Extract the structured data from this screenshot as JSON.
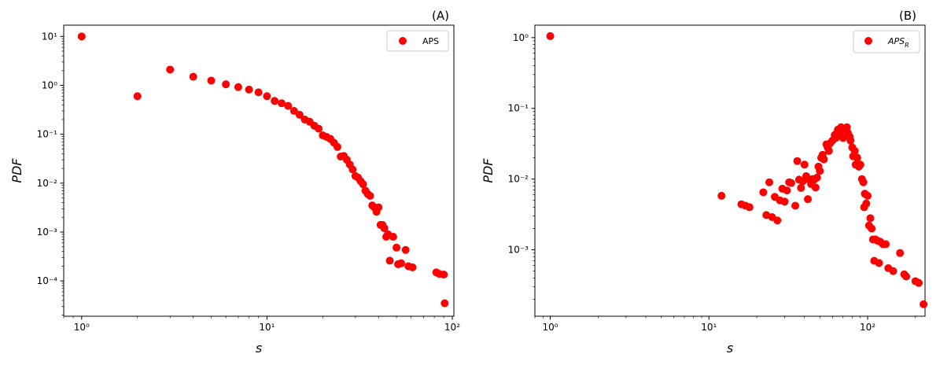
{
  "chart_data": [
    {
      "type": "scatter",
      "panel_label": "(A)",
      "xlabel": "s",
      "ylabel": "PDF",
      "xscale": "log",
      "yscale": "log",
      "xlim": [
        0.8,
        102
      ],
      "ylim": [
        1.9e-05,
        17
      ],
      "x_ticks": [
        1,
        10,
        100
      ],
      "y_ticks": [
        0.0001,
        0.001,
        0.01,
        0.1,
        1,
        10
      ],
      "grid": false,
      "legend_placement": "top-right",
      "color": "#ff0000",
      "series": [
        {
          "name": "APS",
          "points": [
            [
              1,
              10
            ],
            [
              2,
              0.6
            ],
            [
              3,
              2.1
            ],
            [
              4,
              1.5
            ],
            [
              5,
              1.25
            ],
            [
              6,
              1.05
            ],
            [
              7,
              0.92
            ],
            [
              8,
              0.82
            ],
            [
              9,
              0.72
            ],
            [
              10,
              0.6
            ],
            [
              11,
              0.48
            ],
            [
              12,
              0.43
            ],
            [
              13,
              0.38
            ],
            [
              14,
              0.3
            ],
            [
              15,
              0.25
            ],
            [
              16,
              0.2
            ],
            [
              17,
              0.18
            ],
            [
              18,
              0.15
            ],
            [
              19,
              0.13
            ],
            [
              20,
              0.095
            ],
            [
              21,
              0.088
            ],
            [
              22,
              0.08
            ],
            [
              23,
              0.067
            ],
            [
              24,
              0.055
            ],
            [
              25,
              0.035
            ],
            [
              26,
              0.036
            ],
            [
              27,
              0.03
            ],
            [
              28,
              0.024
            ],
            [
              29,
              0.019
            ],
            [
              30,
              0.014
            ],
            [
              31,
              0.013
            ],
            [
              32,
              0.011
            ],
            [
              33,
              0.0095
            ],
            [
              34,
              0.007
            ],
            [
              35,
              0.006
            ],
            [
              36,
              0.0055
            ],
            [
              37,
              0.0035
            ],
            [
              38,
              0.0032
            ],
            [
              39,
              0.0026
            ],
            [
              40,
              0.0032
            ],
            [
              41,
              0.0014
            ],
            [
              42,
              0.0014
            ],
            [
              43,
              0.0012
            ],
            [
              44,
              0.0008
            ],
            [
              45,
              0.0009
            ],
            [
              46,
              0.00026
            ],
            [
              48,
              0.0008
            ],
            [
              50,
              0.00048
            ],
            [
              51,
              0.00022
            ],
            [
              53,
              0.00023
            ],
            [
              56,
              0.00043
            ],
            [
              58,
              0.0002
            ],
            [
              61,
              0.00019
            ],
            [
              82,
              0.00015
            ],
            [
              85,
              0.00014
            ],
            [
              90,
              0.000135
            ],
            [
              91,
              3.5e-05
            ]
          ]
        }
      ]
    },
    {
      "type": "scatter",
      "panel_label": "(B)",
      "xlabel": "s",
      "ylabel": "PDF",
      "xscale": "log",
      "yscale": "log",
      "xlim": [
        0.8,
        230
      ],
      "ylim": [
        0.000115,
        1.5
      ],
      "x_ticks": [
        1,
        10,
        100
      ],
      "y_ticks": [
        0.001,
        0.01,
        0.1,
        1
      ],
      "grid": false,
      "legend_placement": "top-right",
      "color": "#ff0000",
      "series": [
        {
          "name": "APS",
          "name_subscript": "R",
          "points": [
            [
              1,
              1.05
            ],
            [
              12,
              0.0058
            ],
            [
              16,
              0.0044
            ],
            [
              17,
              0.0042
            ],
            [
              18,
              0.004
            ],
            [
              22,
              0.0065
            ],
            [
              23,
              0.0031
            ],
            [
              24,
              0.009
            ],
            [
              25,
              0.0029
            ],
            [
              26,
              0.0056
            ],
            [
              27,
              0.0026
            ],
            [
              28,
              0.005
            ],
            [
              29,
              0.0073
            ],
            [
              30,
              0.0048
            ],
            [
              31,
              0.0069
            ],
            [
              32,
              0.009
            ],
            [
              33,
              0.0088
            ],
            [
              35,
              0.0042
            ],
            [
              36,
              0.018
            ],
            [
              37,
              0.0098
            ],
            [
              38,
              0.0075
            ],
            [
              39,
              0.0093
            ],
            [
              40,
              0.016
            ],
            [
              41,
              0.011
            ],
            [
              42,
              0.0052
            ],
            [
              43,
              0.0098
            ],
            [
              44,
              0.0085
            ],
            [
              45,
              0.01
            ],
            [
              46,
              0.0098
            ],
            [
              47,
              0.0076
            ],
            [
              48,
              0.0105
            ],
            [
              49,
              0.015
            ],
            [
              50,
              0.013
            ],
            [
              51,
              0.02
            ],
            [
              52,
              0.022
            ],
            [
              53,
              0.019
            ],
            [
              55,
              0.031
            ],
            [
              56,
              0.028
            ],
            [
              57,
              0.025
            ],
            [
              58,
              0.032
            ],
            [
              60,
              0.035
            ],
            [
              62,
              0.042
            ],
            [
              63,
              0.038
            ],
            [
              64,
              0.045
            ],
            [
              65,
              0.05
            ],
            [
              67,
              0.043
            ],
            [
              68,
              0.054
            ],
            [
              70,
              0.038
            ],
            [
              72,
              0.05
            ],
            [
              74,
              0.054
            ],
            [
              75,
              0.045
            ],
            [
              77,
              0.04
            ],
            [
              78,
              0.035
            ],
            [
              80,
              0.028
            ],
            [
              81,
              0.021
            ],
            [
              83,
              0.025
            ],
            [
              84,
              0.016
            ],
            [
              86,
              0.02
            ],
            [
              88,
              0.015
            ],
            [
              90,
              0.016
            ],
            [
              92,
              0.01
            ],
            [
              94,
              0.009
            ],
            [
              95,
              0.004
            ],
            [
              96,
              0.0062
            ],
            [
              98,
              0.0045
            ],
            [
              100,
              0.0058
            ],
            [
              102,
              0.0022
            ],
            [
              104,
              0.0028
            ],
            [
              106,
              0.002
            ],
            [
              108,
              0.0014
            ],
            [
              110,
              0.0007
            ],
            [
              112,
              0.0014
            ],
            [
              115,
              0.00135
            ],
            [
              118,
              0.00065
            ],
            [
              120,
              0.0013
            ],
            [
              125,
              0.0012
            ],
            [
              130,
              0.0012
            ],
            [
              135,
              0.00055
            ],
            [
              145,
              0.0005
            ],
            [
              160,
              0.0009
            ],
            [
              170,
              0.00045
            ],
            [
              175,
              0.00042
            ],
            [
              200,
              0.00036
            ],
            [
              210,
              0.00034
            ],
            [
              225,
              0.00017
            ]
          ]
        }
      ]
    }
  ]
}
